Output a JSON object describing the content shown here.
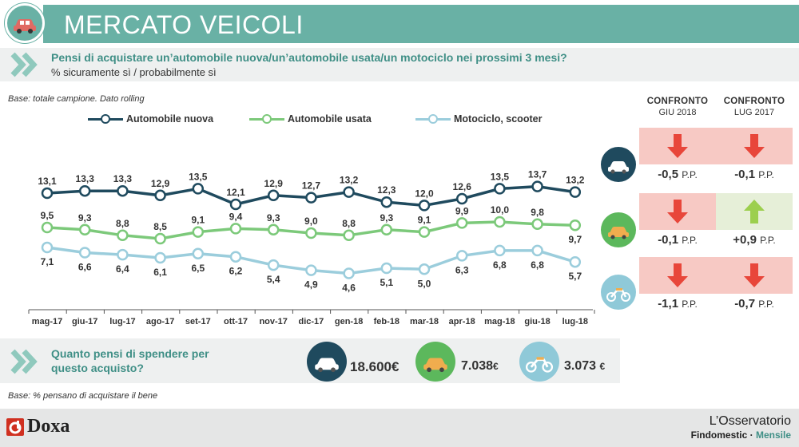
{
  "header": {
    "title": "MERCATO VEICOLI",
    "icon": "car-icon"
  },
  "question": {
    "text": "Pensi di acquistare un’automobile nuova/un’automobile usata/un motociclo nei prossimi 3 mesi?",
    "subtitle": "% sicuramente sì / probabilmente sì"
  },
  "base_note": "Base: totale campione. Dato rolling",
  "legend": {
    "s0": "Automobile nuova",
    "s1": "Automobile usata",
    "s2": "Motociclo, scooter"
  },
  "chart_data": {
    "type": "line",
    "categories": [
      "mag-17",
      "giu-17",
      "lug-17",
      "ago-17",
      "set-17",
      "ott-17",
      "nov-17",
      "dic-17",
      "gen-18",
      "feb-18",
      "mar-18",
      "apr-18",
      "mag-18",
      "giu-18",
      "lug-18"
    ],
    "series": [
      {
        "name": "Automobile nuova",
        "color": "#1f4a5e",
        "values": [
          13.1,
          13.3,
          13.3,
          12.9,
          13.5,
          12.1,
          12.9,
          12.7,
          13.2,
          12.3,
          12.0,
          12.6,
          13.5,
          13.7,
          13.2
        ],
        "labels": [
          "13,1",
          "13,3",
          "13,3",
          "12,9",
          "13,5",
          "12,1",
          "12,9",
          "12,7",
          "13,2",
          "12,3",
          "12,0",
          "12,6",
          "13,5",
          "13,7",
          "13,2"
        ]
      },
      {
        "name": "Automobile usata",
        "color": "#7cc97a",
        "values": [
          9.5,
          9.3,
          8.8,
          8.5,
          9.1,
          9.4,
          9.3,
          9.0,
          8.8,
          9.3,
          9.1,
          9.9,
          10.0,
          9.8,
          9.7
        ],
        "labels": [
          "9,5",
          "9,3",
          "8,8",
          "8,5",
          "9,1",
          "9,4",
          "9,3",
          "9,0",
          "8,8",
          "9,3",
          "9,1",
          "9,9",
          "10,0",
          "9,8",
          "9,7"
        ]
      },
      {
        "name": "Motociclo, scooter",
        "color": "#9bcddc",
        "values": [
          7.1,
          6.6,
          6.4,
          6.1,
          6.5,
          6.2,
          5.4,
          4.9,
          4.6,
          5.1,
          5.0,
          6.3,
          6.8,
          6.8,
          5.7
        ],
        "labels": [
          "7,1",
          "6,6",
          "6,4",
          "6,1",
          "6,5",
          "6,2",
          "5,4",
          "4,9",
          "4,6",
          "5,1",
          "5,0",
          "6,3",
          "6,8",
          "6,8",
          "5,7"
        ]
      }
    ]
  },
  "comparison": {
    "col1": {
      "title": "CONFRONTO",
      "sub": "GIU 2018"
    },
    "col2": {
      "title": "CONFRONTO",
      "sub": "LUG 2017"
    },
    "rows": [
      {
        "vehicle_icon": "car-new-icon",
        "c1": {
          "value": "-0,5",
          "unit": "P.P.",
          "dir": "down"
        },
        "c2": {
          "value": "-0,1",
          "unit": "P.P.",
          "dir": "down"
        }
      },
      {
        "vehicle_icon": "car-used-icon",
        "c1": {
          "value": "-0,1",
          "unit": "P.P.",
          "dir": "down"
        },
        "c2": {
          "value": "+0,9",
          "unit": "P.P.",
          "dir": "up"
        }
      },
      {
        "vehicle_icon": "motorcycle-icon",
        "c1": {
          "value": "-1,1",
          "unit": "P.P.",
          "dir": "down"
        },
        "c2": {
          "value": "-0,7",
          "unit": "P.P.",
          "dir": "down"
        }
      }
    ]
  },
  "spend": {
    "question": "Quanto pensi di spendere per questo acquisto?",
    "items": [
      {
        "icon": "car-new-icon",
        "value": "18.600€"
      },
      {
        "icon": "car-used-icon",
        "value": "7.038",
        "unit": "€"
      },
      {
        "icon": "motorcycle-icon",
        "value": "3.073",
        "unit": "€"
      }
    ]
  },
  "base_note2": "Base: % pensano di acquistare il bene",
  "footer": {
    "left_brand": "Doxa",
    "right_title": "L’Osservatorio",
    "right_sub1": "Findomestic",
    "right_sep": "·",
    "right_sub2": "Mensile"
  },
  "colors": {
    "accent": "#69b1a5",
    "down_bg": "#f7c9c4",
    "up_bg": "#e6efd8",
    "down_arrow": "#e8463a",
    "up_arrow": "#9ccf4e"
  }
}
